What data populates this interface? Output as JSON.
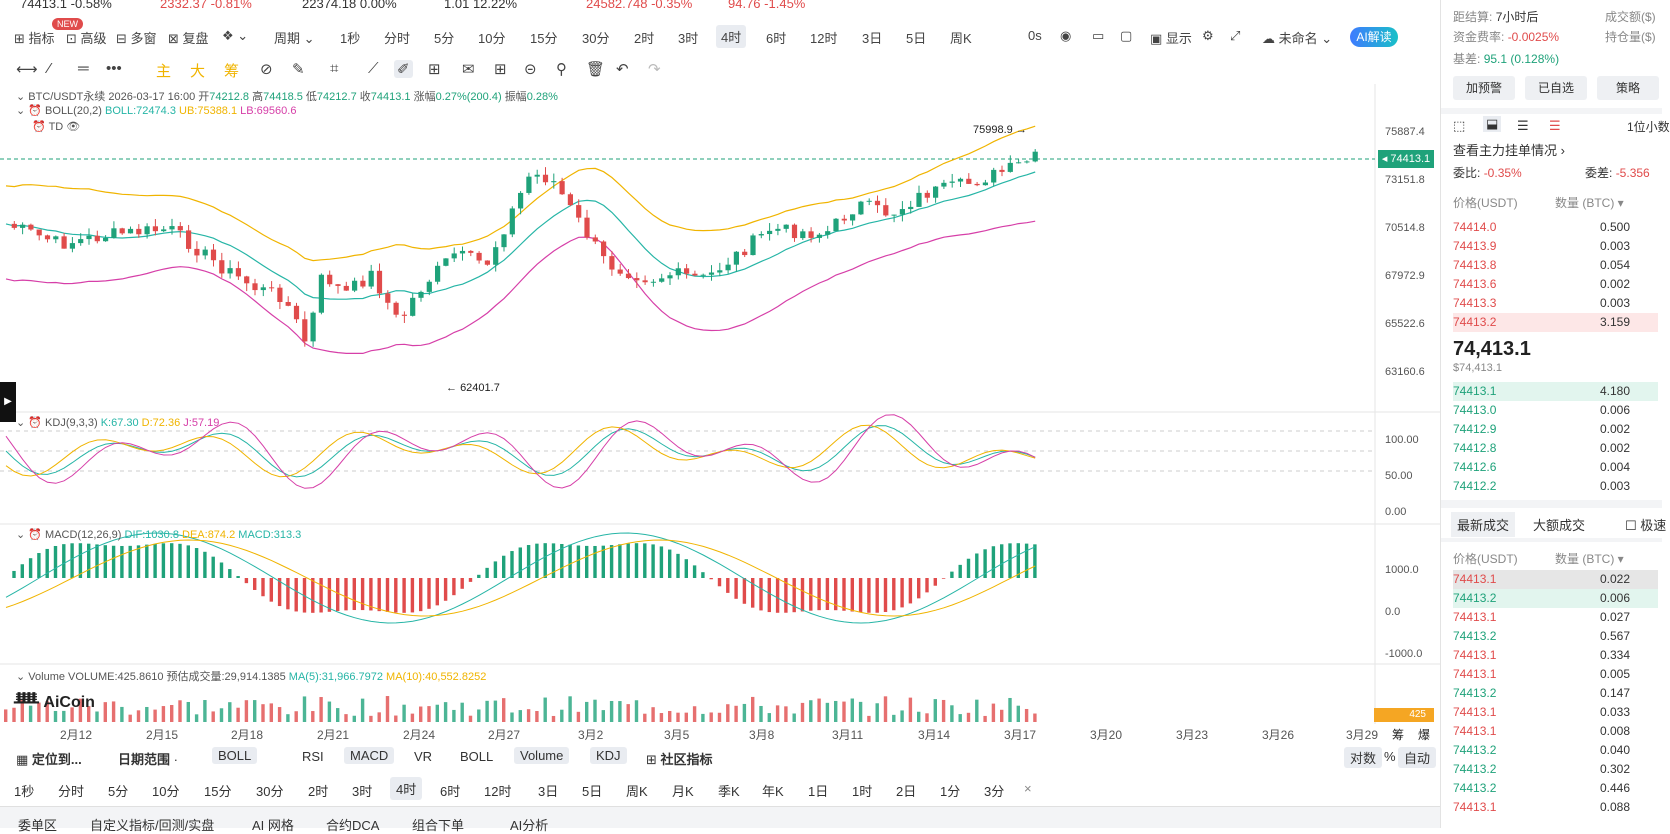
{
  "ticker": [
    {
      "price": "74413.1",
      "change": "-0.58%"
    },
    {
      "price": "2332.37",
      "change": "-0.81%"
    },
    {
      "price": "22374.18",
      "change": "0.00%"
    },
    {
      "price": "1.01",
      "change": "12.22%"
    },
    {
      "price": "24582.748",
      "change": "-0.35%"
    },
    {
      "price": "94.76",
      "change": "-1.45%"
    }
  ],
  "toolbar": {
    "indicators": "指标",
    "advanced": "高级",
    "new_badge": "NEW",
    "multi_window": "多窗",
    "replay": "复盘",
    "period_label": "周期",
    "intervals": [
      "1秒",
      "分时",
      "5分",
      "10分",
      "15分",
      "30分",
      "2时",
      "3时",
      "4时",
      "6时",
      "12时",
      "3日",
      "5日",
      "周K"
    ],
    "active_interval": "4时",
    "countdown": "0s",
    "display": "显示",
    "unnamed": "未命名",
    "ai": "AI解读"
  },
  "drawing_quick": [
    "主",
    "大",
    "筹"
  ],
  "legend": {
    "symbol": "BTC/USDT永续",
    "datetime": "2026-03-17 16:00",
    "open_label": "开",
    "open": "74212.8",
    "high_label": "高",
    "high": "74418.5",
    "low_label": "低",
    "low": "74212.7",
    "close_label": "收",
    "close": "74413.1",
    "change_label": "涨幅",
    "change": "0.27%(200.4)",
    "amp_label": "振幅",
    "amp": "0.28%",
    "boll_name": "BOLL(20,2)",
    "boll": "BOLL:72474.3",
    "ub": "UB:75388.1",
    "lb": "LB:69560.6",
    "td": "TD"
  },
  "price_axis": [
    "75887.4",
    "73151.8",
    "70514.8",
    "67972.9",
    "65522.6",
    "63160.6"
  ],
  "current_price_tag": "74413.1",
  "annotations": {
    "high": "75998.9",
    "low": "62401.7"
  },
  "kdj": {
    "name": "KDJ(9,3,3)",
    "k": "K:67.30",
    "d": "D:72.36",
    "j": "J:57.19",
    "axis": [
      "100.00",
      "50.00",
      "0.00"
    ]
  },
  "macd": {
    "name": "MACD(12,26,9)",
    "dif": "DIF:1030.8",
    "dea": "DEA:874.2",
    "macd": "MACD:313.3",
    "axis": [
      "1000.0",
      "0.0",
      "-1000.0"
    ]
  },
  "volume": {
    "name": "Volume",
    "vol": "VOLUME:425.8610",
    "est": "预估成交量:29,914.1385",
    "ma5": "MA(5):31,966.7972",
    "ma10": "MA(10):40,552.8252",
    "tag": "425"
  },
  "logo": "AiCoin",
  "dates": [
    "2月12",
    "2月15",
    "2月18",
    "2月21",
    "2月24",
    "2月27",
    "3月2",
    "3月5",
    "3月8",
    "3月11",
    "3月14",
    "3月17",
    "3月20",
    "3月23",
    "3月26",
    "3月29"
  ],
  "corner_labels": [
    "筹",
    "爆"
  ],
  "bottom_bar1": {
    "locate": "定位到...",
    "range": "日期范围",
    "boll_pill": "BOLL",
    "tabs": [
      "RSI",
      "MACD",
      "VR",
      "BOLL",
      "Volume",
      "KDJ"
    ],
    "community": "社区指标",
    "log": "对数",
    "pct": "%",
    "auto": "自动"
  },
  "bottom_bar2": [
    "1秒",
    "分时",
    "5分",
    "10分",
    "15分",
    "30分",
    "2时",
    "3时",
    "4时",
    "6时",
    "12时",
    "3日",
    "5日",
    "周K",
    "月K",
    "季K",
    "年K",
    "1日",
    "1时",
    "2日",
    "1分",
    "3分"
  ],
  "bottom_bar2_active": "4时",
  "bottom_tabs": [
    "委单区",
    "自定义指标/回测/实盘",
    "AI 网格",
    "合约DCA",
    "组合下单",
    "AI分析"
  ],
  "right": {
    "settle_label": "距结算:",
    "settle": "7小时后",
    "volume_label": "成交额($)",
    "funding_label": "资金费率:",
    "funding": "-0.0025%",
    "oi_label": "持仓量($)",
    "basis_label": "基差:",
    "basis": "95.1 (0.128%)",
    "buttons": [
      "加预警",
      "已自选",
      "策略"
    ],
    "precision": "1位小数",
    "view_orders": "查看主力挂单情况 ›",
    "ratio_label": "委比:",
    "ratio": "-0.35%",
    "diff_label": "委差:",
    "diff": "-5.356",
    "price_header": "价格(USDT)",
    "qty_header": "数量 (BTC) ▾",
    "asks": [
      [
        "74414.0",
        "0.500"
      ],
      [
        "74413.9",
        "0.003"
      ],
      [
        "74413.8",
        "0.054"
      ],
      [
        "74413.6",
        "0.002"
      ],
      [
        "74413.3",
        "0.003"
      ],
      [
        "74413.2",
        "3.159"
      ]
    ],
    "last_price": "74,413.1",
    "last_usd": "$74,413.1",
    "bids": [
      [
        "74413.1",
        "4.180"
      ],
      [
        "74413.0",
        "0.006"
      ],
      [
        "74412.9",
        "0.002"
      ],
      [
        "74412.8",
        "0.002"
      ],
      [
        "74412.6",
        "0.004"
      ],
      [
        "74412.2",
        "0.003"
      ]
    ],
    "trade_tabs": [
      "最新成交",
      "大额成交",
      "极速"
    ],
    "trades": [
      [
        "74413.1",
        "0.022",
        "r"
      ],
      [
        "74413.2",
        "0.006",
        "g"
      ],
      [
        "74413.1",
        "0.027",
        "r"
      ],
      [
        "74413.2",
        "0.567",
        "g"
      ],
      [
        "74413.1",
        "0.334",
        "r"
      ],
      [
        "74413.1",
        "0.005",
        "r"
      ],
      [
        "74413.2",
        "0.147",
        "g"
      ],
      [
        "74413.1",
        "0.033",
        "r"
      ],
      [
        "74413.1",
        "0.008",
        "r"
      ],
      [
        "74413.2",
        "0.040",
        "g"
      ],
      [
        "74413.2",
        "0.302",
        "g"
      ],
      [
        "74413.2",
        "0.446",
        "g"
      ],
      [
        "74413.1",
        "0.088",
        "r"
      ]
    ]
  },
  "colors": {
    "up": "#1fa27a",
    "down": "#e04b4b",
    "accent": "#3f7bff",
    "boll_mid": "#26b5a6",
    "boll_up": "#f0b400",
    "boll_low": "#d63fa8"
  }
}
